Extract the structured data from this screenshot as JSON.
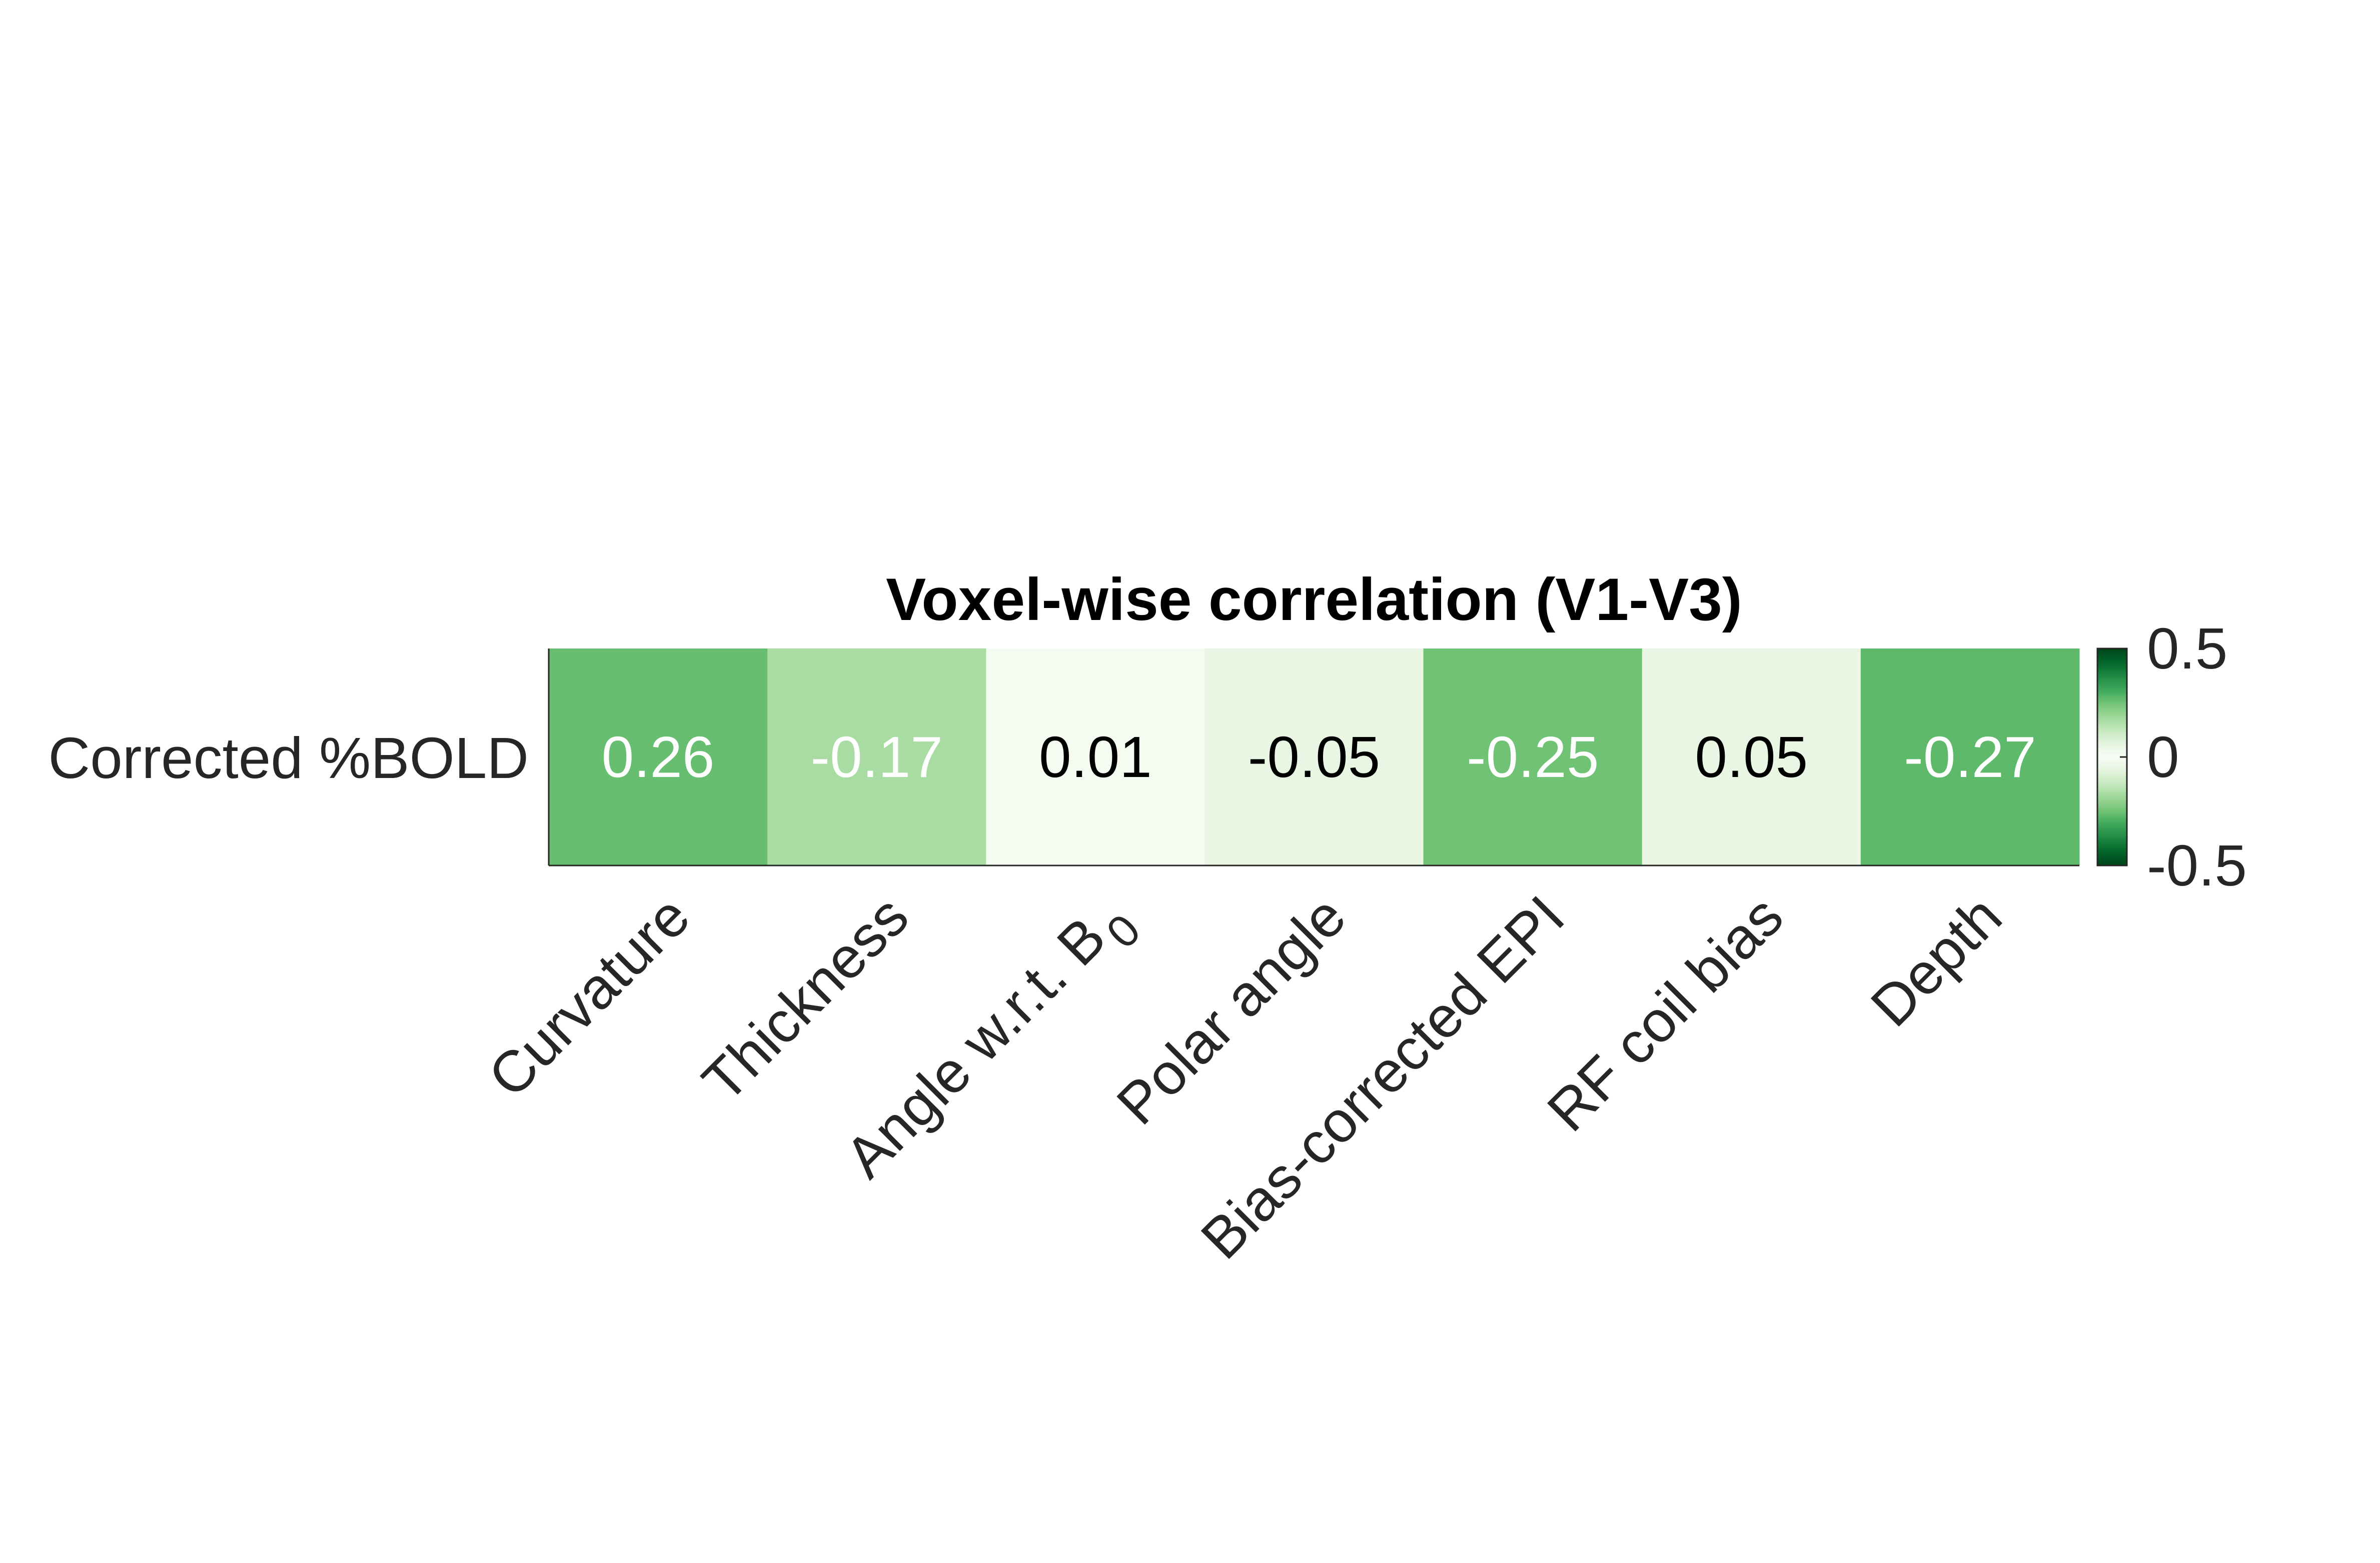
{
  "chart_data": {
    "type": "heatmap",
    "title": "Voxel-wise correlation (V1-V3)",
    "rows": [
      "Corrected %BOLD"
    ],
    "columns": [
      "Curvature",
      "Thickness",
      "Angle w.r.t. B",
      "Polar angle",
      "Bias-corrected EPI",
      "RF coil bias",
      "Depth"
    ],
    "column_subscripts": [
      "",
      "",
      "0",
      "",
      "",
      "",
      ""
    ],
    "values": [
      [
        0.26,
        -0.17,
        0.01,
        -0.05,
        -0.25,
        0.05,
        -0.27
      ]
    ],
    "value_labels": [
      [
        "0.26",
        "-0.17",
        "0.01",
        "-0.05",
        "-0.25",
        "0.05",
        "-0.27"
      ]
    ],
    "colorbar": {
      "range": [
        -0.5,
        0.5
      ],
      "ticks": [
        0.5,
        0,
        -0.5
      ],
      "tick_labels": [
        "0.5",
        "0",
        "-0.5"
      ],
      "colormap": "symmetric green (dark green at both ends, white at 0)",
      "dark_color": "#00682b",
      "mid_color": "#f7fcf5"
    },
    "colors": {
      "label_dark": "#000000",
      "label_light": "#ffffff"
    }
  }
}
